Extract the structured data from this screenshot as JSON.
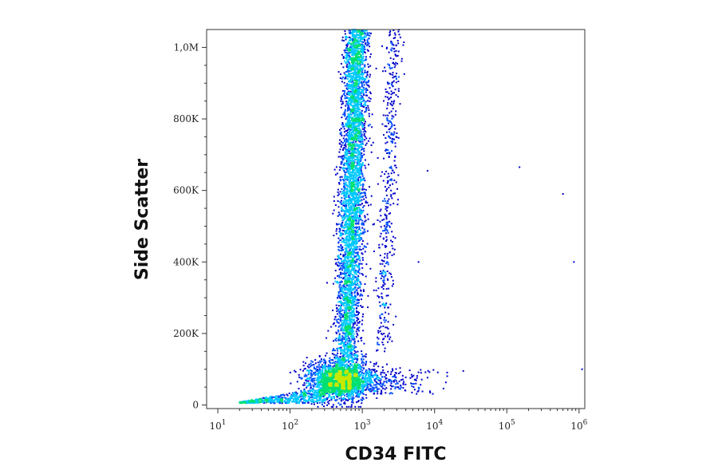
{
  "chart_data": {
    "type": "scatter",
    "xlabel": "CD34 FITC",
    "ylabel": "Side Scatter",
    "x_scale": "log",
    "xlim": [
      7,
      1200000
    ],
    "ylim": [
      -10000,
      1050000
    ],
    "x_ticks": [
      {
        "value": 10,
        "base": "10",
        "exp": "1"
      },
      {
        "value": 100,
        "base": "10",
        "exp": "2"
      },
      {
        "value": 1000,
        "base": "10",
        "exp": "3"
      },
      {
        "value": 10000,
        "base": "10",
        "exp": "4"
      },
      {
        "value": 100000,
        "base": "10",
        "exp": "5"
      },
      {
        "value": 1000000,
        "base": "10",
        "exp": "6"
      }
    ],
    "y_ticks": [
      {
        "value": 0,
        "label": "0"
      },
      {
        "value": 200000,
        "label": "200K"
      },
      {
        "value": 400000,
        "label": "400K"
      },
      {
        "value": 600000,
        "label": "600K"
      },
      {
        "value": 800000,
        "label": "800K"
      },
      {
        "value": 1000000,
        "label": "1,0M"
      }
    ],
    "grid": false,
    "density_colormap": [
      "#0000c8",
      "#0050ff",
      "#00c8ff",
      "#00e070",
      "#c8e800",
      "#ffa000",
      "#ff2000",
      "#d00000"
    ],
    "populations": [
      {
        "name": "low-SSC cluster",
        "x_center": 500,
        "y_center": 70000,
        "x_spread_log": 0.22,
        "y_spread": 28000,
        "points": 2200,
        "peak_density": true
      },
      {
        "name": "main SSC stream",
        "x_center": 700,
        "y_range": [
          120000,
          1050000
        ],
        "points": 4200
      },
      {
        "name": "secondary stream",
        "x_center": 2800,
        "y_range": [
          150000,
          1050000
        ],
        "points": 450
      }
    ],
    "outliers": [
      {
        "x": 150000,
        "y": 665000
      },
      {
        "x": 600000,
        "y": 590000
      },
      {
        "x": 850000,
        "y": 400000
      },
      {
        "x": 1100000,
        "y": 100000
      },
      {
        "x": 3000,
        "y": 760000
      },
      {
        "x": 8000,
        "y": 655000
      },
      {
        "x": 6000,
        "y": 400000
      },
      {
        "x": 25000,
        "y": 95000
      }
    ]
  }
}
